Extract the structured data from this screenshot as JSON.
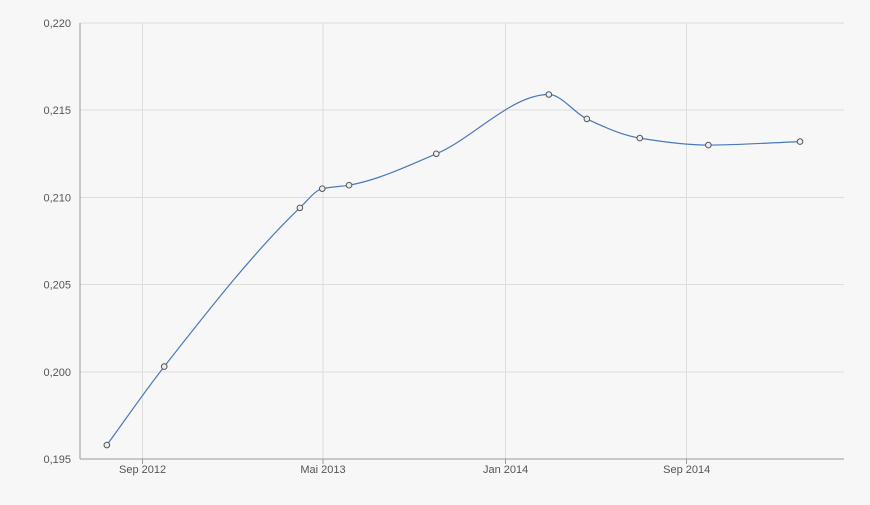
{
  "chart_data": {
    "type": "line",
    "title": "",
    "xlabel": "",
    "ylabel": "",
    "x": [
      "2012-07-15",
      "2012-09-30",
      "2013-03-31",
      "2013-04-30",
      "2013-06-05",
      "2013-09-30",
      "2014-02-28",
      "2014-04-20",
      "2014-06-30",
      "2014-09-30",
      "2015-01-31"
    ],
    "series": [
      {
        "values": [
          0.1958,
          0.2003,
          0.2094,
          0.2105,
          0.2107,
          0.2125,
          0.2159,
          0.2145,
          0.2134,
          0.213,
          0.2132
        ]
      }
    ],
    "xlim": [
      "2012-06-09",
      "2015-03-31"
    ],
    "ylim": [
      0.195,
      0.22
    ],
    "x_ticks": [
      {
        "date": "2012-09-01",
        "label": "Sep 2012"
      },
      {
        "date": "2013-05-01",
        "label": "Mai 2013"
      },
      {
        "date": "2014-01-01",
        "label": "Jan 2014"
      },
      {
        "date": "2014-09-01",
        "label": "Sep 2014"
      }
    ],
    "y_ticks": [
      {
        "value": 0.195,
        "label": "0,195"
      },
      {
        "value": 0.2,
        "label": "0,200"
      },
      {
        "value": 0.205,
        "label": "0,205"
      },
      {
        "value": 0.21,
        "label": "0,210"
      },
      {
        "value": 0.215,
        "label": "0,215"
      },
      {
        "value": 0.22,
        "label": "0,220"
      }
    ],
    "grid": true,
    "legend": "none",
    "line_color": "#4a7ab8",
    "marker_fill": "#eeeeee",
    "marker_stroke": "#555555",
    "grid_color": "#dddddd",
    "axis_color": "#999999"
  }
}
